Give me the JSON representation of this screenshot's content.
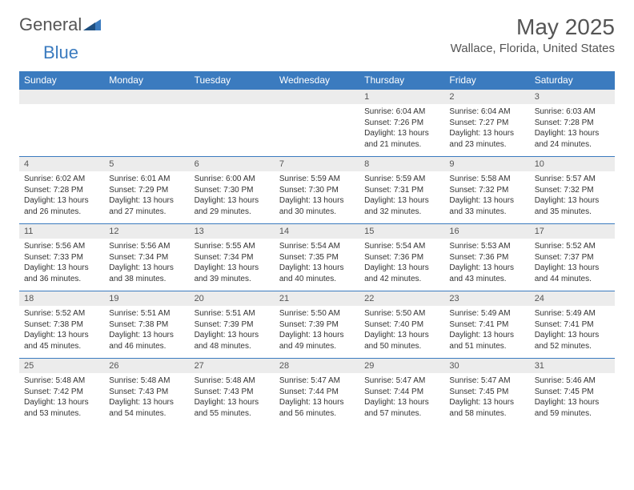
{
  "brand": {
    "text1": "General",
    "text2": "Blue"
  },
  "title": "May 2025",
  "location": "Wallace, Florida, United States",
  "colors": {
    "header_bg": "#3b7bbf",
    "header_fg": "#ffffff",
    "daynum_bg": "#ececec",
    "text": "#555555",
    "body_bg": "#ffffff",
    "rule": "#3b7bbf"
  },
  "fonts": {
    "family": "Arial, Helvetica, sans-serif",
    "title_size_pt": 21,
    "location_size_pt": 11,
    "header_size_pt": 9,
    "daynum_size_pt": 8,
    "detail_size_pt": 7.5
  },
  "columns": [
    "Sunday",
    "Monday",
    "Tuesday",
    "Wednesday",
    "Thursday",
    "Friday",
    "Saturday"
  ],
  "weeks": [
    [
      null,
      null,
      null,
      null,
      {
        "n": "1",
        "sr": "6:04 AM",
        "ss": "7:26 PM",
        "dl": "13 hours and 21 minutes."
      },
      {
        "n": "2",
        "sr": "6:04 AM",
        "ss": "7:27 PM",
        "dl": "13 hours and 23 minutes."
      },
      {
        "n": "3",
        "sr": "6:03 AM",
        "ss": "7:28 PM",
        "dl": "13 hours and 24 minutes."
      }
    ],
    [
      {
        "n": "4",
        "sr": "6:02 AM",
        "ss": "7:28 PM",
        "dl": "13 hours and 26 minutes."
      },
      {
        "n": "5",
        "sr": "6:01 AM",
        "ss": "7:29 PM",
        "dl": "13 hours and 27 minutes."
      },
      {
        "n": "6",
        "sr": "6:00 AM",
        "ss": "7:30 PM",
        "dl": "13 hours and 29 minutes."
      },
      {
        "n": "7",
        "sr": "5:59 AM",
        "ss": "7:30 PM",
        "dl": "13 hours and 30 minutes."
      },
      {
        "n": "8",
        "sr": "5:59 AM",
        "ss": "7:31 PM",
        "dl": "13 hours and 32 minutes."
      },
      {
        "n": "9",
        "sr": "5:58 AM",
        "ss": "7:32 PM",
        "dl": "13 hours and 33 minutes."
      },
      {
        "n": "10",
        "sr": "5:57 AM",
        "ss": "7:32 PM",
        "dl": "13 hours and 35 minutes."
      }
    ],
    [
      {
        "n": "11",
        "sr": "5:56 AM",
        "ss": "7:33 PM",
        "dl": "13 hours and 36 minutes."
      },
      {
        "n": "12",
        "sr": "5:56 AM",
        "ss": "7:34 PM",
        "dl": "13 hours and 38 minutes."
      },
      {
        "n": "13",
        "sr": "5:55 AM",
        "ss": "7:34 PM",
        "dl": "13 hours and 39 minutes."
      },
      {
        "n": "14",
        "sr": "5:54 AM",
        "ss": "7:35 PM",
        "dl": "13 hours and 40 minutes."
      },
      {
        "n": "15",
        "sr": "5:54 AM",
        "ss": "7:36 PM",
        "dl": "13 hours and 42 minutes."
      },
      {
        "n": "16",
        "sr": "5:53 AM",
        "ss": "7:36 PM",
        "dl": "13 hours and 43 minutes."
      },
      {
        "n": "17",
        "sr": "5:52 AM",
        "ss": "7:37 PM",
        "dl": "13 hours and 44 minutes."
      }
    ],
    [
      {
        "n": "18",
        "sr": "5:52 AM",
        "ss": "7:38 PM",
        "dl": "13 hours and 45 minutes."
      },
      {
        "n": "19",
        "sr": "5:51 AM",
        "ss": "7:38 PM",
        "dl": "13 hours and 46 minutes."
      },
      {
        "n": "20",
        "sr": "5:51 AM",
        "ss": "7:39 PM",
        "dl": "13 hours and 48 minutes."
      },
      {
        "n": "21",
        "sr": "5:50 AM",
        "ss": "7:39 PM",
        "dl": "13 hours and 49 minutes."
      },
      {
        "n": "22",
        "sr": "5:50 AM",
        "ss": "7:40 PM",
        "dl": "13 hours and 50 minutes."
      },
      {
        "n": "23",
        "sr": "5:49 AM",
        "ss": "7:41 PM",
        "dl": "13 hours and 51 minutes."
      },
      {
        "n": "24",
        "sr": "5:49 AM",
        "ss": "7:41 PM",
        "dl": "13 hours and 52 minutes."
      }
    ],
    [
      {
        "n": "25",
        "sr": "5:48 AM",
        "ss": "7:42 PM",
        "dl": "13 hours and 53 minutes."
      },
      {
        "n": "26",
        "sr": "5:48 AM",
        "ss": "7:43 PM",
        "dl": "13 hours and 54 minutes."
      },
      {
        "n": "27",
        "sr": "5:48 AM",
        "ss": "7:43 PM",
        "dl": "13 hours and 55 minutes."
      },
      {
        "n": "28",
        "sr": "5:47 AM",
        "ss": "7:44 PM",
        "dl": "13 hours and 56 minutes."
      },
      {
        "n": "29",
        "sr": "5:47 AM",
        "ss": "7:44 PM",
        "dl": "13 hours and 57 minutes."
      },
      {
        "n": "30",
        "sr": "5:47 AM",
        "ss": "7:45 PM",
        "dl": "13 hours and 58 minutes."
      },
      {
        "n": "31",
        "sr": "5:46 AM",
        "ss": "7:45 PM",
        "dl": "13 hours and 59 minutes."
      }
    ]
  ],
  "labels": {
    "sunrise": "Sunrise:",
    "sunset": "Sunset:",
    "daylight": "Daylight:"
  }
}
